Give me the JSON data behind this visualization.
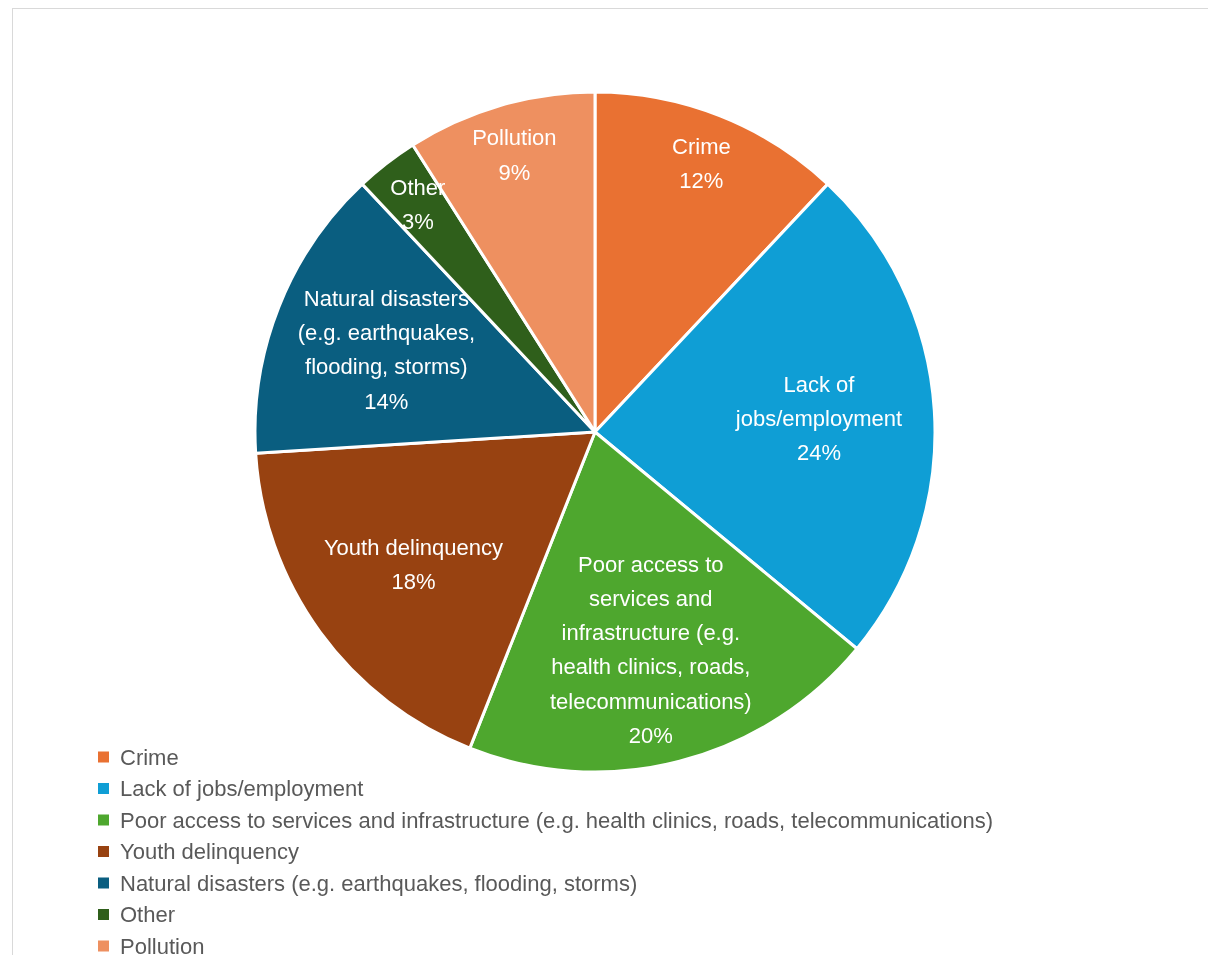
{
  "chart_data": {
    "type": "pie",
    "categories": [
      "Crime",
      "Lack of jobs/employment",
      "Poor access to services and infrastructure (e.g. health clinics, roads, telecommunications)",
      "Youth delinquency",
      "Natural disasters (e.g. earthquakes, flooding, storms)",
      "Other",
      "Pollution"
    ],
    "values": [
      12,
      24,
      20,
      18,
      14,
      3,
      9
    ],
    "value_labels": [
      "12%",
      "24%",
      "20%",
      "18%",
      "14%",
      "3%",
      "9%"
    ],
    "colors": [
      "#e97132",
      "#0f9ed5",
      "#4ea72e",
      "#984211",
      "#0a5e80",
      "#2f5f1b",
      "#ee9060"
    ],
    "legend": "bottom left"
  }
}
